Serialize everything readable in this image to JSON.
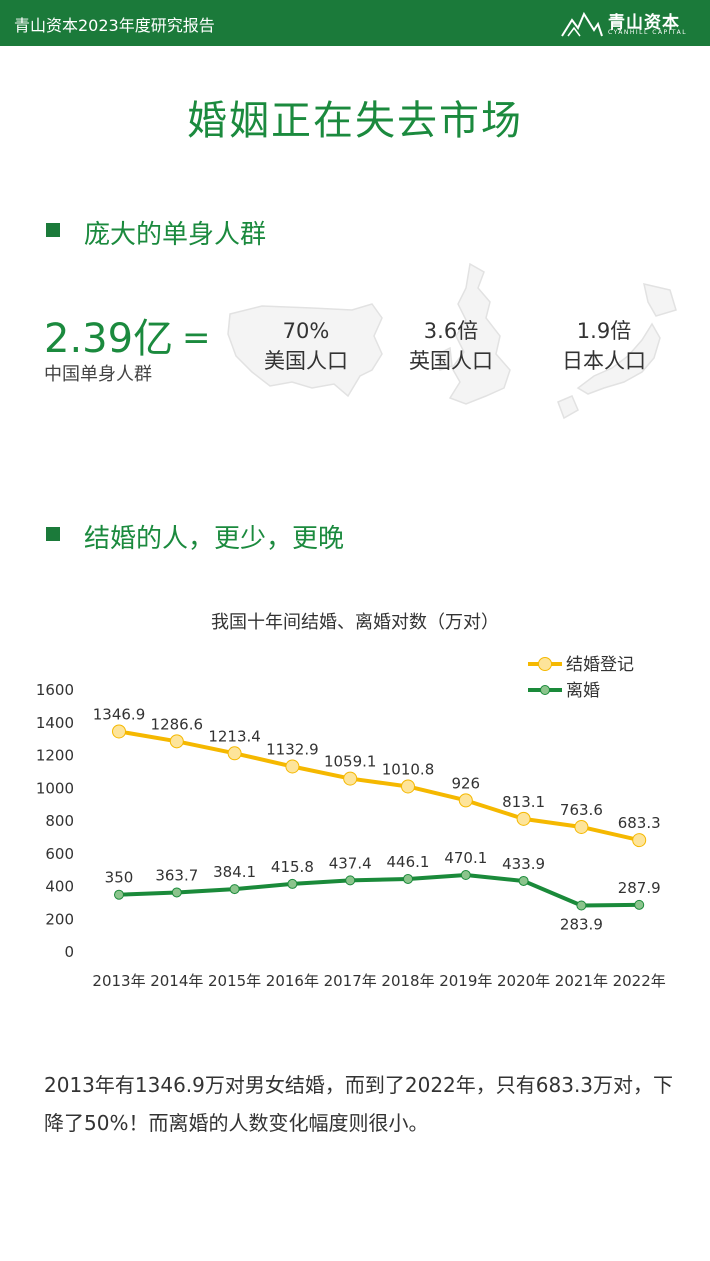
{
  "header": {
    "report_title": "青山资本2023年度研究报告",
    "logo_cn": "青山资本",
    "logo_en": "CYANHILL CAPITAL"
  },
  "page_title": "婚姻正在失去市场",
  "section1": {
    "heading": "庞大的单身人群",
    "big_number": "2.39亿",
    "equals": "=",
    "big_label": "中国单身人群",
    "stats": [
      {
        "value": "70%",
        "label": "美国人口"
      },
      {
        "value": "3.6倍",
        "label": "英国人口"
      },
      {
        "value": "1.9倍",
        "label": "日本人口"
      }
    ]
  },
  "section2": {
    "heading": "结婚的人，更少，更晚"
  },
  "chart_data": {
    "type": "line",
    "title": "我国十年间结婚、离婚对数（万对）",
    "categories": [
      "2013年",
      "2014年",
      "2015年",
      "2016年",
      "2017年",
      "2018年",
      "2019年",
      "2020年",
      "2021年",
      "2022年"
    ],
    "y_ticks": [
      "0",
      "200",
      "400",
      "600",
      "800",
      "1000",
      "1200",
      "1400",
      "1600"
    ],
    "ylim": [
      0,
      1600
    ],
    "legend_position": "top-right",
    "grid": false,
    "series": [
      {
        "name": "结婚登记",
        "color": "#f5b800",
        "marker_color": "#fde49a",
        "values": [
          1346.9,
          1286.6,
          1213.4,
          1132.9,
          1059.1,
          1010.8,
          926,
          813.1,
          763.6,
          683.3
        ],
        "labels": [
          "1346.9",
          "1286.6",
          "1213.4",
          "1132.9",
          "1059.1",
          "1010.8",
          "926",
          "813.1",
          "763.6",
          "683.3"
        ]
      },
      {
        "name": "离婚",
        "color": "#1a8a3a",
        "marker_color": "#8bc48c",
        "values": [
          350,
          363.7,
          384.1,
          415.8,
          437.4,
          446.1,
          470.1,
          433.9,
          283.9,
          287.9
        ],
        "labels": [
          "350",
          "363.7",
          "384.1",
          "415.8",
          "437.4",
          "446.1",
          "470.1",
          "433.9",
          "283.9",
          "287.9"
        ]
      }
    ]
  },
  "summary": "2013年有1346.9万对男女结婚，而到了2022年，只有683.3万对，下降了50%！而离婚的人数变化幅度则很小。"
}
